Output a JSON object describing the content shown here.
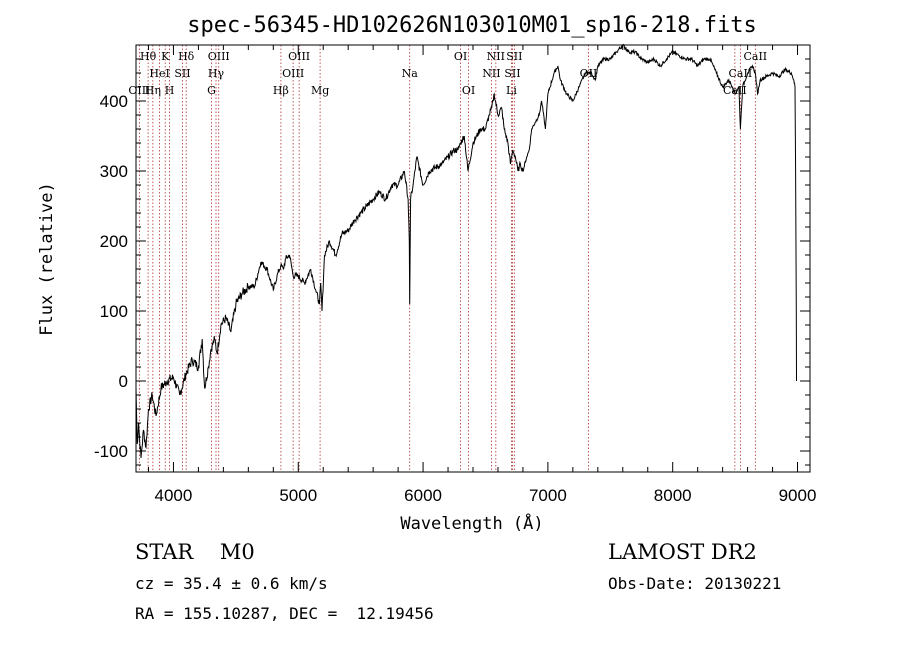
{
  "chart_data": {
    "type": "line",
    "title": "spec-56345-HD102626N103010M01_sp16-218.fits",
    "xlabel": "Wavelength (Å)",
    "ylabel": "Flux (relative)",
    "xlim": [
      3700,
      9100
    ],
    "ylim": [
      -130,
      480
    ],
    "xticks": [
      4000,
      5000,
      6000,
      7000,
      8000,
      9000
    ],
    "yticks": [
      -100,
      0,
      100,
      200,
      300,
      400
    ],
    "series": [
      {
        "x": [
          3700,
          3710,
          3720,
          3740,
          3760,
          3780,
          3800,
          3830,
          3860,
          3900,
          3950,
          4000,
          4050,
          4100,
          4150,
          4200,
          4230,
          4250,
          4280,
          4300,
          4330,
          4350,
          4380,
          4420,
          4460,
          4500,
          4550,
          4600,
          4650,
          4700,
          4750,
          4800,
          4830,
          4860,
          4880,
          4900,
          4930,
          4960,
          5000,
          5050,
          5100,
          5140,
          5170,
          5180,
          5190,
          5210,
          5250,
          5300,
          5350,
          5400,
          5450,
          5500,
          5550,
          5600,
          5650,
          5700,
          5750,
          5800,
          5850,
          5880,
          5890,
          5893,
          5896,
          5900,
          5920,
          5950,
          6000,
          6050,
          6100,
          6150,
          6200,
          6250,
          6280,
          6300,
          6330,
          6360,
          6400,
          6430,
          6460,
          6500,
          6530,
          6550,
          6560,
          6570,
          6600,
          6630,
          6650,
          6680,
          6700,
          6720,
          6740,
          6760,
          6780,
          6800,
          6830,
          6850,
          6870,
          6900,
          6930,
          6950,
          6980,
          7000,
          7050,
          7080,
          7100,
          7150,
          7200,
          7250,
          7300,
          7350,
          7380,
          7400,
          7450,
          7500,
          7550,
          7600,
          7650,
          7700,
          7750,
          7800,
          7850,
          7900,
          7950,
          8000,
          8050,
          8100,
          8150,
          8200,
          8250,
          8300,
          8350,
          8400,
          8450,
          8480,
          8500,
          8530,
          8542,
          8560,
          8600,
          8640,
          8662,
          8680,
          8700,
          8750,
          8800,
          8850,
          8900,
          8950,
          8970,
          8980,
          8985,
          8990,
          8992
        ],
        "y": [
          -10,
          -90,
          -60,
          -110,
          -70,
          -95,
          -40,
          -20,
          -50,
          -10,
          0,
          5,
          -20,
          10,
          30,
          20,
          60,
          -10,
          20,
          45,
          60,
          40,
          80,
          90,
          70,
          110,
          125,
          135,
          135,
          170,
          160,
          130,
          150,
          165,
          160,
          175,
          180,
          150,
          150,
          140,
          160,
          130,
          110,
          140,
          100,
          180,
          200,
          180,
          210,
          215,
          230,
          240,
          250,
          260,
          270,
          260,
          280,
          280,
          300,
          260,
          200,
          110,
          180,
          260,
          280,
          320,
          280,
          300,
          305,
          310,
          320,
          330,
          330,
          340,
          350,
          300,
          340,
          350,
          360,
          360,
          380,
          390,
          400,
          410,
          380,
          390,
          360,
          340,
          310,
          330,
          320,
          300,
          310,
          300,
          320,
          330,
          360,
          370,
          380,
          400,
          360,
          410,
          440,
          450,
          430,
          410,
          400,
          420,
          440,
          440,
          430,
          450,
          460,
          460,
          470,
          480,
          470,
          470,
          460,
          455,
          460,
          450,
          460,
          470,
          465,
          460,
          460,
          450,
          460,
          460,
          440,
          420,
          430,
          420,
          410,
          420,
          360,
          420,
          440,
          450,
          440,
          410,
          430,
          435,
          440,
          435,
          445,
          440,
          430,
          420,
          300,
          100,
          0
        ]
      }
    ],
    "lines": [
      {
        "label": "Hθ",
        "x": 3797,
        "row": 1
      },
      {
        "label": "OIII",
        "x": 3727,
        "row": 3
      },
      {
        "label": "Hη",
        "x": 3835,
        "row": 3
      },
      {
        "label": "HeI",
        "x": 3889,
        "row": 2
      },
      {
        "label": "K",
        "x": 3934,
        "row": 1
      },
      {
        "label": "H",
        "x": 3969,
        "row": 3
      },
      {
        "label": "SII",
        "x": 4072,
        "row": 2
      },
      {
        "label": "Hδ",
        "x": 4102,
        "row": 1
      },
      {
        "label": "G",
        "x": 4305,
        "row": 3
      },
      {
        "label": "Hγ",
        "x": 4341,
        "row": 2
      },
      {
        "label": "OIII",
        "x": 4363,
        "row": 1
      },
      {
        "label": "Hβ",
        "x": 4861,
        "row": 3
      },
      {
        "label": "OIII",
        "x": 4959,
        "row": 2
      },
      {
        "label": "OIII",
        "x": 5007,
        "row": 1
      },
      {
        "label": "Mg",
        "x": 5175,
        "row": 3
      },
      {
        "label": "Na",
        "x": 5893,
        "row": 2
      },
      {
        "label": "OI",
        "x": 6300,
        "row": 1
      },
      {
        "label": "OI",
        "x": 6364,
        "row": 3
      },
      {
        "label": "NII",
        "x": 6548,
        "row": 2
      },
      {
        "label": "NII",
        "x": 6583,
        "row": 1
      },
      {
        "label": "Li",
        "x": 6708,
        "row": 3
      },
      {
        "label": "SII",
        "x": 6716,
        "row": 2
      },
      {
        "label": "SII",
        "x": 6731,
        "row": 1
      },
      {
        "label": "OII",
        "x": 7325,
        "row": 2
      },
      {
        "label": "CaII",
        "x": 8498,
        "row": 3
      },
      {
        "label": "CaII",
        "x": 8542,
        "row": 2
      },
      {
        "label": "CaII",
        "x": 8662,
        "row": 1
      }
    ]
  },
  "info": {
    "class": "STAR    M0",
    "survey": "LAMOST DR2",
    "cz": "cz = 35.4 ± 0.6 km/s",
    "obs_date": "Obs-Date: 20130221",
    "radec": "RA = 155.10287, DEC =  12.19456"
  }
}
